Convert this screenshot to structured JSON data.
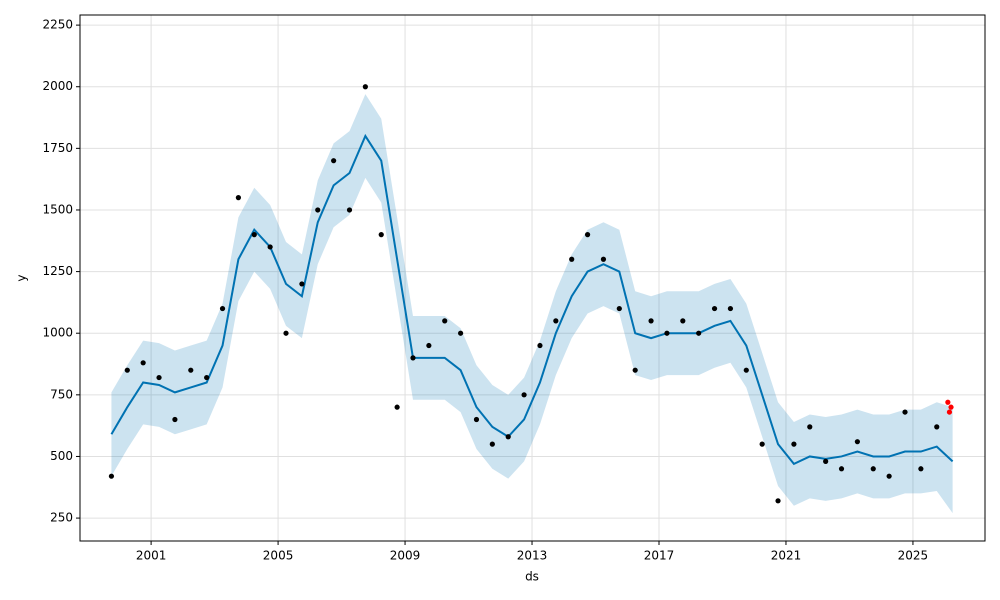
{
  "chart_data": {
    "type": "line",
    "xlabel": "ds",
    "ylabel": "y",
    "xlim": [
      1998.76,
      2027.27
    ],
    "ylim": [
      157,
      2291
    ],
    "xticks": [
      2001,
      2005,
      2009,
      2013,
      2017,
      2021,
      2025
    ],
    "yticks": [
      250,
      500,
      750,
      1000,
      1250,
      1500,
      1750,
      2000,
      2250
    ],
    "grid": true,
    "series": [
      {
        "color": "#0072B2",
        "band_color": "#0072B2",
        "x": [
          1999.75,
          2000.25,
          2000.75,
          2001.25,
          2001.75,
          2002.25,
          2002.75,
          2003.25,
          2003.75,
          2004.25,
          2004.75,
          2005.25,
          2005.75,
          2006.25,
          2006.75,
          2007.25,
          2007.75,
          2008.25,
          2008.75,
          2009.25,
          2009.75,
          2010.25,
          2010.75,
          2011.25,
          2011.75,
          2012.25,
          2012.75,
          2013.25,
          2013.75,
          2014.25,
          2014.75,
          2015.25,
          2015.75,
          2016.25,
          2016.75,
          2017.25,
          2017.75,
          2018.25,
          2018.75,
          2019.25,
          2019.75,
          2020.25,
          2020.75,
          2021.25,
          2021.75,
          2022.25,
          2022.75,
          2023.25,
          2023.75,
          2024.25,
          2024.75,
          2025.25,
          2025.75,
          2026.25
        ],
        "values": [
          590,
          700,
          800,
          790,
          760,
          780,
          800,
          950,
          1300,
          1420,
          1350,
          1200,
          1150,
          1450,
          1600,
          1650,
          1800,
          1700,
          1300,
          900,
          900,
          900,
          850,
          700,
          620,
          580,
          650,
          800,
          1000,
          1150,
          1250,
          1280,
          1250,
          1000,
          980,
          1000,
          1000,
          1000,
          1030,
          1050,
          950,
          750,
          550,
          470,
          500,
          490,
          500,
          520,
          500,
          500,
          520,
          520,
          540,
          480
        ],
        "lower": [
          420,
          530,
          630,
          620,
          590,
          610,
          630,
          780,
          1130,
          1250,
          1180,
          1030,
          980,
          1280,
          1430,
          1480,
          1630,
          1530,
          1130,
          730,
          730,
          730,
          680,
          530,
          450,
          410,
          480,
          630,
          830,
          980,
          1080,
          1110,
          1080,
          830,
          810,
          830,
          830,
          830,
          860,
          880,
          780,
          580,
          380,
          300,
          330,
          320,
          330,
          350,
          330,
          330,
          350,
          350,
          360,
          270
        ],
        "upper": [
          760,
          870,
          970,
          960,
          930,
          950,
          970,
          1120,
          1470,
          1590,
          1520,
          1370,
          1320,
          1620,
          1770,
          1820,
          1970,
          1870,
          1470,
          1070,
          1070,
          1070,
          1020,
          870,
          790,
          750,
          820,
          970,
          1170,
          1320,
          1420,
          1450,
          1420,
          1170,
          1150,
          1170,
          1170,
          1170,
          1200,
          1220,
          1120,
          920,
          720,
          640,
          670,
          660,
          670,
          690,
          670,
          670,
          690,
          690,
          720,
          700
        ]
      },
      {
        "color": "#000000",
        "marker": "dot",
        "x": [
          1999.75,
          2000.25,
          2000.75,
          2001.25,
          2001.75,
          2002.25,
          2002.75,
          2003.25,
          2003.75,
          2004.25,
          2004.75,
          2005.25,
          2005.75,
          2006.25,
          2006.75,
          2007.25,
          2007.75,
          2008.25,
          2008.75,
          2009.25,
          2009.75,
          2010.25,
          2010.75,
          2011.25,
          2011.75,
          2012.25,
          2012.75,
          2013.25,
          2013.75,
          2014.25,
          2014.75,
          2015.25,
          2015.75,
          2016.25,
          2016.75,
          2017.25,
          2017.75,
          2018.25,
          2018.75,
          2019.25,
          2019.75,
          2020.25,
          2020.75,
          2021.25,
          2021.75,
          2022.25,
          2022.75,
          2023.25,
          2023.75,
          2024.25,
          2024.75,
          2025.25,
          2025.75
        ],
        "values": [
          420,
          850,
          880,
          820,
          650,
          850,
          820,
          1100,
          1550,
          1400,
          1350,
          1000,
          1200,
          1500,
          1700,
          1500,
          2000,
          1400,
          700,
          900,
          950,
          1050,
          1000,
          650,
          550,
          580,
          750,
          950,
          1050,
          1300,
          1400,
          1300,
          1100,
          850,
          1050,
          1000,
          1050,
          1000,
          1100,
          1100,
          850,
          550,
          320,
          550,
          620,
          480,
          450,
          560,
          450,
          420,
          680,
          450,
          620
        ]
      },
      {
        "color": "#ff0000",
        "marker": "dot",
        "x": [
          2026.1,
          2026.15,
          2026.2
        ],
        "values": [
          720,
          680,
          700
        ]
      }
    ]
  }
}
